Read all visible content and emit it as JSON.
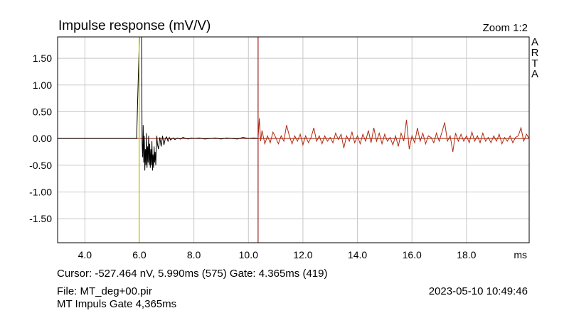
{
  "chart_data": {
    "type": "line",
    "title": "Impulse response (mV/V)",
    "xlabel": "",
    "ylabel": "",
    "x_unit": "ms",
    "xlim": [
      3.0,
      20.3
    ],
    "ylim": [
      -1.95,
      1.9
    ],
    "x_ticks": [
      "4.0",
      "6.0",
      "8.0",
      "10.0",
      "12.0",
      "14.0",
      "16.0",
      "18.0"
    ],
    "y_ticks": [
      "1.50",
      "1.00",
      "0.50",
      "0.00",
      "-0.50",
      "-1.00",
      "-1.50"
    ],
    "grid": true,
    "cursor_ms": 5.99,
    "gate_ms": 10.355,
    "colors": {
      "pre_gate": "#000000",
      "post_gate": "#b02a10",
      "cursor": "#c8c800",
      "gate": "#a02020",
      "zero_line": "#b02a10",
      "grid": "#c8c8c8"
    },
    "series": [
      {
        "x": [
          3.0,
          5.9,
          6.0,
          6.04,
          6.08,
          6.1,
          6.12,
          6.14,
          6.16,
          6.18,
          6.2,
          6.22,
          6.24,
          6.26,
          6.28,
          6.3,
          6.32,
          6.34,
          6.36,
          6.38,
          6.4,
          6.42,
          6.44,
          6.46,
          6.48,
          6.5,
          6.52,
          6.54,
          6.56,
          6.58,
          6.6,
          6.62,
          6.64,
          6.66,
          6.7,
          6.75,
          6.8,
          6.85,
          6.9,
          6.95,
          7.0,
          7.05,
          7.1,
          7.15,
          7.2,
          7.25,
          7.3,
          7.4,
          7.5,
          7.6,
          7.7,
          7.8,
          7.9,
          8.0,
          8.2,
          8.4,
          8.6,
          8.8,
          9.0,
          9.2,
          9.4,
          9.6,
          9.8,
          10.0,
          10.2,
          10.355
        ],
        "y": [
          0.0,
          0.0,
          1.9,
          1.9,
          1.9,
          -0.1,
          -0.35,
          0.25,
          -0.45,
          0.05,
          -0.6,
          -0.2,
          -0.5,
          0.1,
          -0.55,
          -0.15,
          -0.45,
          0.05,
          -0.5,
          -0.1,
          -0.55,
          -0.2,
          -0.5,
          -0.05,
          -0.6,
          -0.3,
          -0.55,
          -0.15,
          -0.45,
          -0.25,
          -0.5,
          -0.2,
          0.05,
          -0.1,
          -0.2,
          0.02,
          -0.15,
          0.05,
          -0.12,
          0.0,
          0.03,
          -0.05,
          0.02,
          -0.03,
          0.0,
          0.01,
          -0.02,
          0.01,
          -0.01,
          0.02,
          0.0,
          -0.01,
          0.01,
          0.0,
          0.01,
          -0.01,
          0.0,
          0.01,
          -0.01,
          0.01,
          0.0,
          -0.01,
          0.02,
          0.0,
          0.01,
          0.0
        ]
      },
      {
        "x": [
          10.355,
          10.4,
          10.45,
          10.5,
          10.6,
          10.7,
          10.8,
          10.9,
          11.0,
          11.1,
          11.2,
          11.3,
          11.4,
          11.5,
          11.6,
          11.7,
          11.8,
          11.9,
          12.0,
          12.1,
          12.2,
          12.3,
          12.4,
          12.5,
          12.6,
          12.7,
          12.8,
          12.9,
          13.0,
          13.1,
          13.2,
          13.3,
          13.4,
          13.5,
          13.6,
          13.7,
          13.8,
          13.9,
          14.0,
          14.1,
          14.2,
          14.3,
          14.4,
          14.5,
          14.6,
          14.7,
          14.8,
          14.9,
          15.0,
          15.1,
          15.2,
          15.3,
          15.4,
          15.5,
          15.6,
          15.7,
          15.8,
          15.9,
          16.0,
          16.1,
          16.2,
          16.3,
          16.4,
          16.5,
          16.6,
          16.7,
          16.8,
          16.9,
          17.0,
          17.1,
          17.2,
          17.3,
          17.4,
          17.5,
          17.6,
          17.7,
          17.8,
          17.9,
          18.0,
          18.1,
          18.2,
          18.3,
          18.4,
          18.5,
          18.6,
          18.7,
          18.8,
          18.9,
          19.0,
          19.1,
          19.2,
          19.3,
          19.4,
          19.5,
          19.6,
          19.7,
          19.8,
          19.9,
          20.0,
          20.1,
          20.2,
          20.3
        ],
        "y": [
          0.0,
          0.38,
          -0.05,
          0.15,
          -0.1,
          0.05,
          -0.08,
          0.12,
          0.02,
          -0.1,
          0.05,
          -0.05,
          0.25,
          0.05,
          -0.1,
          0.05,
          -0.05,
          0.08,
          -0.12,
          0.05,
          -0.08,
          0.02,
          0.2,
          -0.05,
          0.05,
          -0.1,
          0.05,
          -0.05,
          0.02,
          -0.08,
          0.1,
          -0.02,
          0.08,
          -0.18,
          0.05,
          -0.05,
          0.12,
          -0.08,
          0.05,
          -0.1,
          0.08,
          -0.05,
          0.15,
          -0.08,
          0.2,
          -0.05,
          0.1,
          -0.1,
          0.08,
          -0.05,
          0.02,
          -0.12,
          0.05,
          -0.15,
          0.1,
          -0.05,
          0.35,
          -0.2,
          0.05,
          -0.08,
          0.2,
          -0.05,
          0.1,
          -0.1,
          0.05,
          0.02,
          -0.08,
          0.1,
          -0.05,
          0.12,
          0.3,
          -0.05,
          0.05,
          -0.25,
          0.1,
          -0.05,
          0.08,
          -0.05,
          0.05,
          -0.08,
          0.12,
          -0.05,
          0.05,
          -0.08,
          0.1,
          -0.05,
          0.02,
          -0.08,
          0.05,
          -0.05,
          0.08,
          -0.1,
          0.02,
          -0.05,
          0.05,
          -0.08,
          0.02,
          0.05,
          0.2,
          -0.05,
          0.08,
          0.0
        ]
      }
    ]
  },
  "header": {
    "title": "Impulse response (mV/V)",
    "zoom": "Zoom 1:2",
    "brand": [
      "A",
      "R",
      "T",
      "A"
    ]
  },
  "footer": {
    "cursor_info": "Cursor: -527.464 nV, 5.990ms (575)  Gate: 4.365ms (419)",
    "file": "File: MT_deg+00.pir",
    "datetime": "2023-05-10  10:49:46",
    "note": "MT Impuls Gate 4,365ms"
  }
}
